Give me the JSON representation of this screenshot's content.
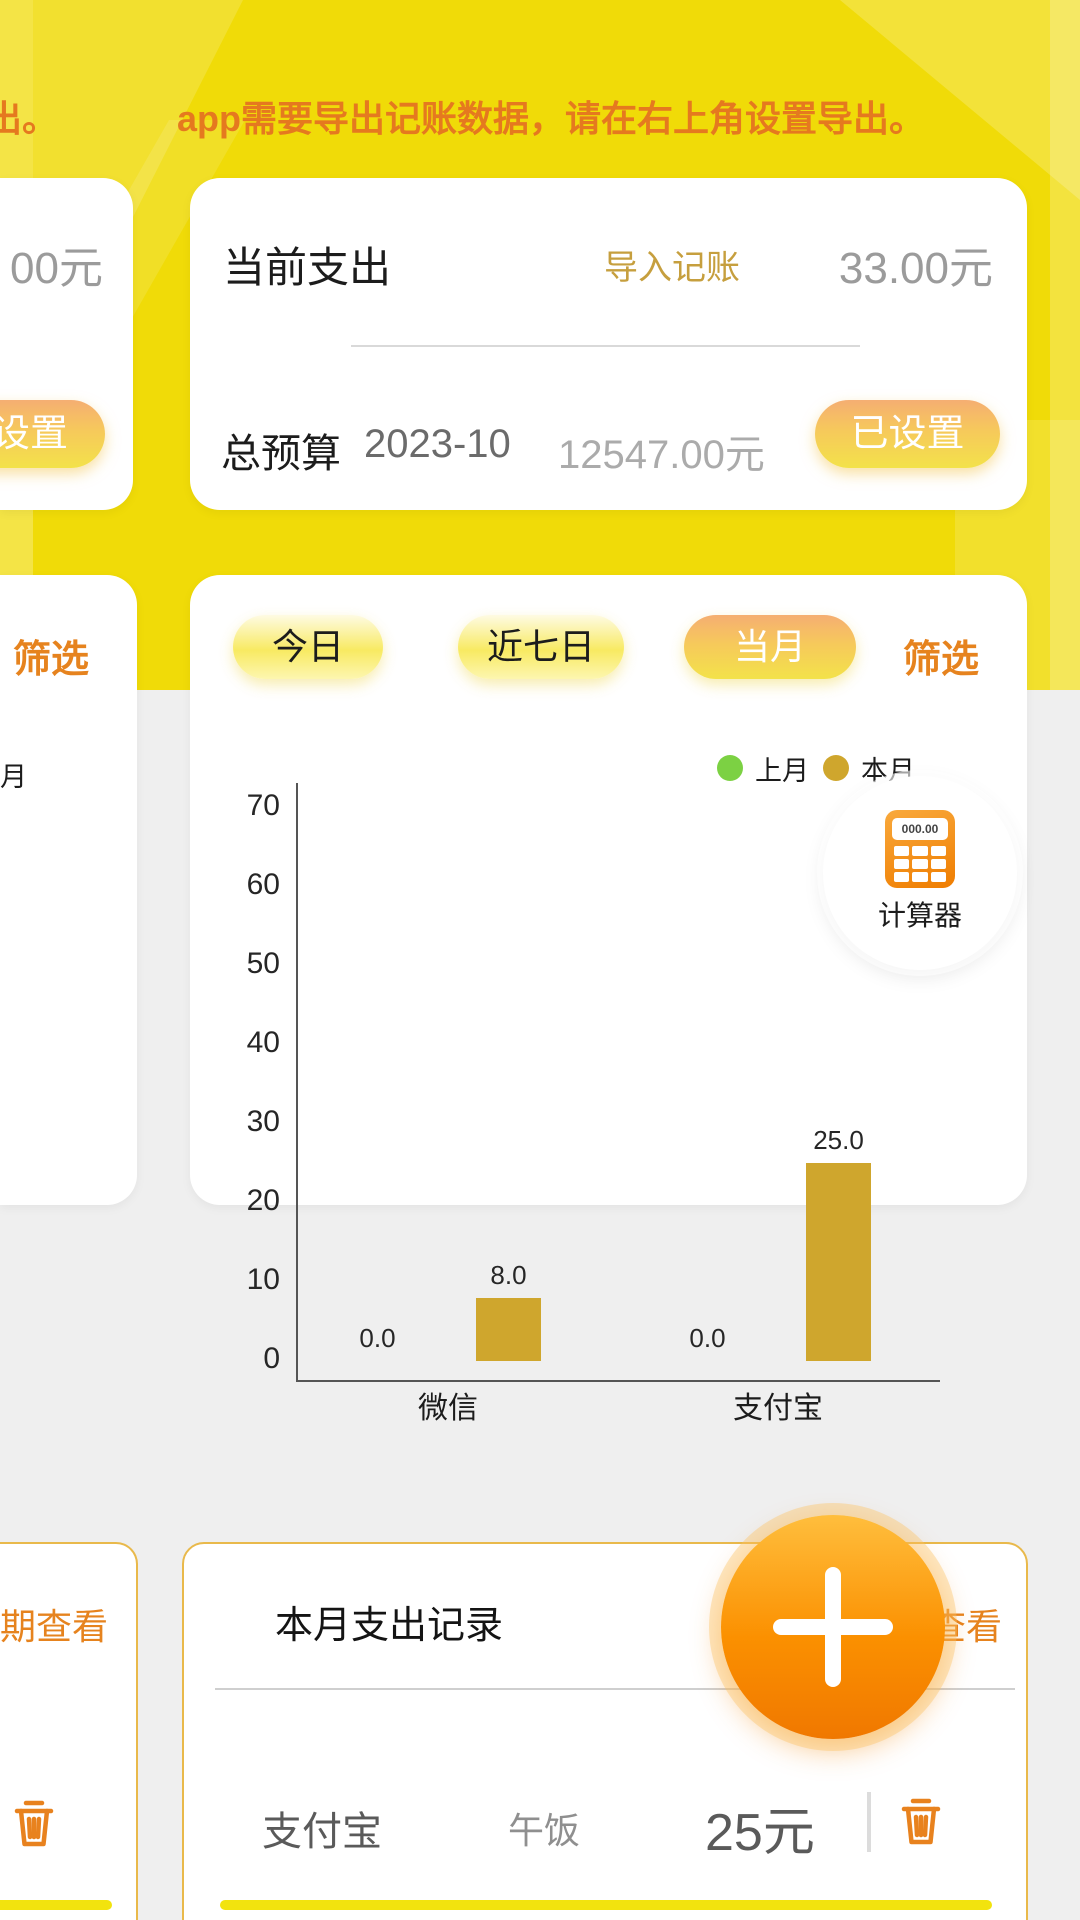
{
  "banner": {
    "fragment": "出。",
    "text": "app需要导出记账数据，请在右上角设置导出。"
  },
  "summary_card": {
    "title": "当前支出",
    "import_link": "导入记账",
    "amount": "33.00元",
    "budget_label": "总预算",
    "budget_month": "2023-10",
    "budget_amount": "12547.00元",
    "budget_status": "已设置"
  },
  "left_card1": {
    "amount_fragment": "00元",
    "button_fragment": "设置"
  },
  "chart_card": {
    "tabs": [
      {
        "label": "今日",
        "selected": false
      },
      {
        "label": "近七日",
        "selected": false
      },
      {
        "label": "当月",
        "selected": true
      }
    ],
    "filter_label": "筛选",
    "calculator_label": "计算器",
    "calculator_display": "000.00"
  },
  "left_card2": {
    "filter_fragment": "筛选",
    "legend_fragment": "月"
  },
  "chart_data": {
    "type": "bar",
    "categories": [
      "微信",
      "支付宝"
    ],
    "series": [
      {
        "name": "上月",
        "color": "#7CD143",
        "values": [
          0.0,
          0.0
        ]
      },
      {
        "name": "本月",
        "color": "#CFA62D",
        "values": [
          8.0,
          25.0
        ]
      }
    ],
    "yticks": [
      0,
      10,
      20,
      30,
      40,
      50,
      60,
      70
    ],
    "ylim": [
      0,
      70
    ],
    "bar_value_labels": [
      [
        "0.0",
        "8.0"
      ],
      [
        "0.0",
        "25.0"
      ]
    ],
    "grid": false,
    "legend_position": "top-right"
  },
  "records_card": {
    "title": "本月支出记录",
    "view_link": "按日期查看",
    "record": {
      "channel": "支付宝",
      "note": "午饭",
      "amount": "25元"
    }
  },
  "left_card3": {
    "view_fragment": "期查看"
  },
  "colors": {
    "header_yellow": "#F0DB08",
    "accent_orange": "#E6831E",
    "banner_text": "#E5791F",
    "bar_gold": "#CFA62D",
    "legend_green": "#7CD143",
    "fab_orange": "#FB9000",
    "card_border": "#E9B94B"
  }
}
